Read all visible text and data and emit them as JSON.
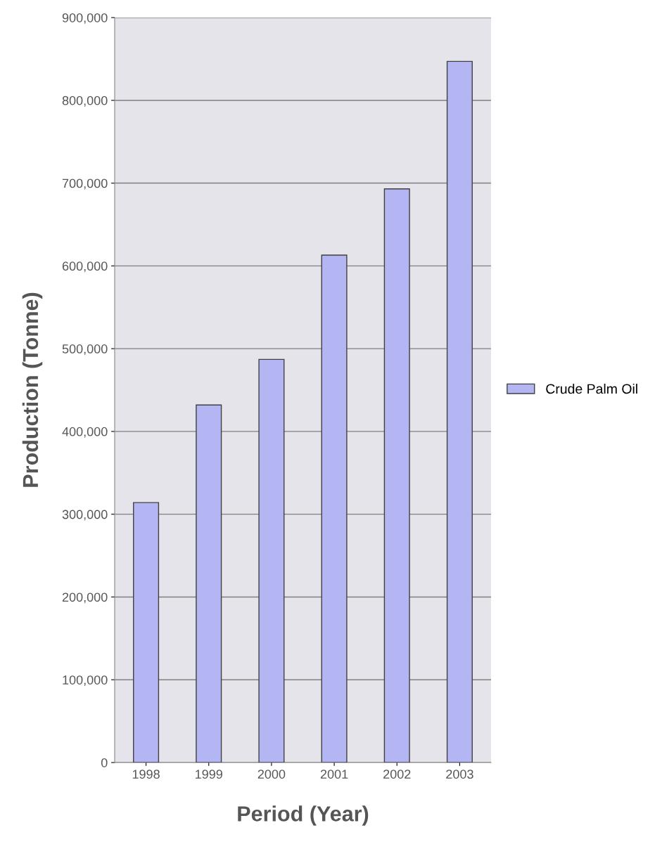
{
  "chart_data": {
    "type": "bar",
    "xlabel": "Period (Year)",
    "ylabel": "Production (Tonne)",
    "categories": [
      "1998",
      "1999",
      "2000",
      "2001",
      "2002",
      "2003"
    ],
    "series": [
      {
        "name": "Crude Palm Oil",
        "color": "#b4b6f4",
        "values": [
          314000,
          432000,
          487000,
          613000,
          693000,
          847000
        ]
      }
    ],
    "ylim": [
      0,
      900000
    ],
    "yticks": [
      {
        "value": 0,
        "label": "0"
      },
      {
        "value": 100000,
        "label": "100,000"
      },
      {
        "value": 200000,
        "label": "200,000"
      },
      {
        "value": 300000,
        "label": "300,000"
      },
      {
        "value": 400000,
        "label": "400,000"
      },
      {
        "value": 500000,
        "label": "500,000"
      },
      {
        "value": 600000,
        "label": "600,000"
      },
      {
        "value": 700000,
        "label": "700,000"
      },
      {
        "value": 800000,
        "label": "800,000"
      },
      {
        "value": 900000,
        "label": "900,000"
      }
    ],
    "grid": "y",
    "legend": "right"
  }
}
